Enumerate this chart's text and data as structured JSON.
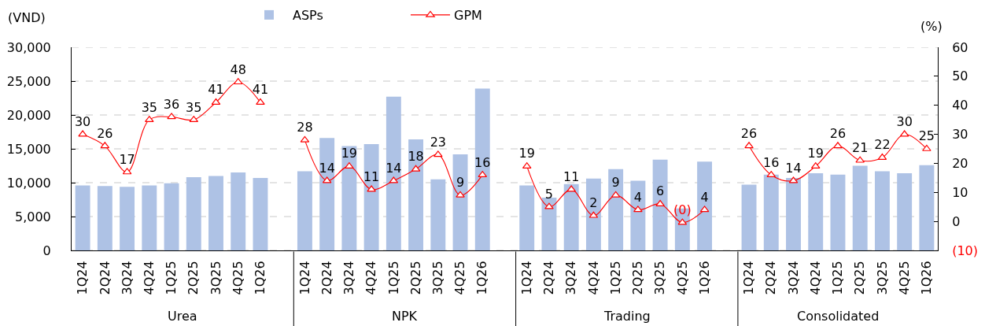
{
  "chart_data": {
    "type": "bar",
    "ylabel": "(VND)",
    "y2label": "(%)",
    "categories": [
      "1Q24",
      "2Q24",
      "3Q24",
      "4Q24",
      "1Q25",
      "2Q25",
      "3Q25",
      "4Q25",
      "1Q26",
      null,
      "1Q24",
      "2Q24",
      "3Q24",
      "4Q24",
      "1Q25",
      "2Q25",
      "3Q25",
      "4Q25",
      "1Q26",
      null,
      "1Q24",
      "2Q24",
      "3Q24",
      "4Q24",
      "1Q25",
      "2Q25",
      "3Q25",
      "4Q25",
      "1Q26",
      null,
      "1Q24",
      "2Q24",
      "3Q24",
      "4Q24",
      "1Q25",
      "2Q25",
      "3Q25",
      "4Q25",
      "1Q26"
    ],
    "series": [
      {
        "name": "ASPs",
        "color": "#aec2e5",
        "values": [
          9600,
          9500,
          9400,
          9600,
          9900,
          10800,
          11000,
          11500,
          10700,
          null,
          11700,
          16600,
          15400,
          15700,
          22700,
          16400,
          10500,
          14200,
          23900,
          null,
          9600,
          7800,
          9800,
          10600,
          12000,
          10300,
          13400,
          6200,
          13100,
          null,
          9700,
          11200,
          10700,
          11400,
          11200,
          12500,
          11700,
          11400,
          12600
        ]
      },
      {
        "name": "GPM",
        "type": "line",
        "axis": "y2",
        "color": "#ff0000",
        "values": [
          30,
          26,
          17,
          35,
          36,
          35,
          41,
          48,
          41,
          null,
          28,
          14,
          19,
          11,
          14,
          18,
          23,
          9,
          16,
          null,
          19,
          5,
          11,
          2,
          9,
          4,
          6,
          -0.4,
          4,
          null,
          26,
          16,
          14,
          19,
          26,
          21,
          22,
          30,
          25
        ],
        "value_labels": [
          "30",
          "26",
          "17",
          "35",
          "36",
          "35",
          "41",
          "48",
          "41",
          null,
          "28",
          "14",
          "19",
          "11",
          "14",
          "18",
          "23",
          "9",
          "16",
          null,
          "19",
          "5",
          "11",
          "2",
          "9",
          "4",
          "6",
          "(0)",
          "4",
          null,
          "26",
          "16",
          "14",
          "19",
          "26",
          "21",
          "22",
          "30",
          "25"
        ]
      }
    ],
    "ylim": [
      0,
      30000
    ],
    "yticks": [
      0,
      {
        "value": 5000,
        "label": "5,000"
      },
      {
        "value": 10000,
        "label": "10,000"
      },
      {
        "value": 15000,
        "label": "15,000"
      },
      {
        "value": 20000,
        "label": "20,000"
      },
      {
        "value": 25000,
        "label": "25,000"
      },
      {
        "value": 30000,
        "label": "30,000"
      }
    ],
    "y2lim": [
      -10,
      60
    ],
    "y2ticks": [
      {
        "value": -10,
        "label": "(10)"
      },
      0,
      10,
      20,
      30,
      40,
      50,
      60
    ],
    "annotations": [
      "Urea",
      "NPK",
      "Trading",
      "Consolidated"
    ],
    "grid": "y",
    "legend": "top",
    "marker": "triangle",
    "line_style": "solid"
  }
}
